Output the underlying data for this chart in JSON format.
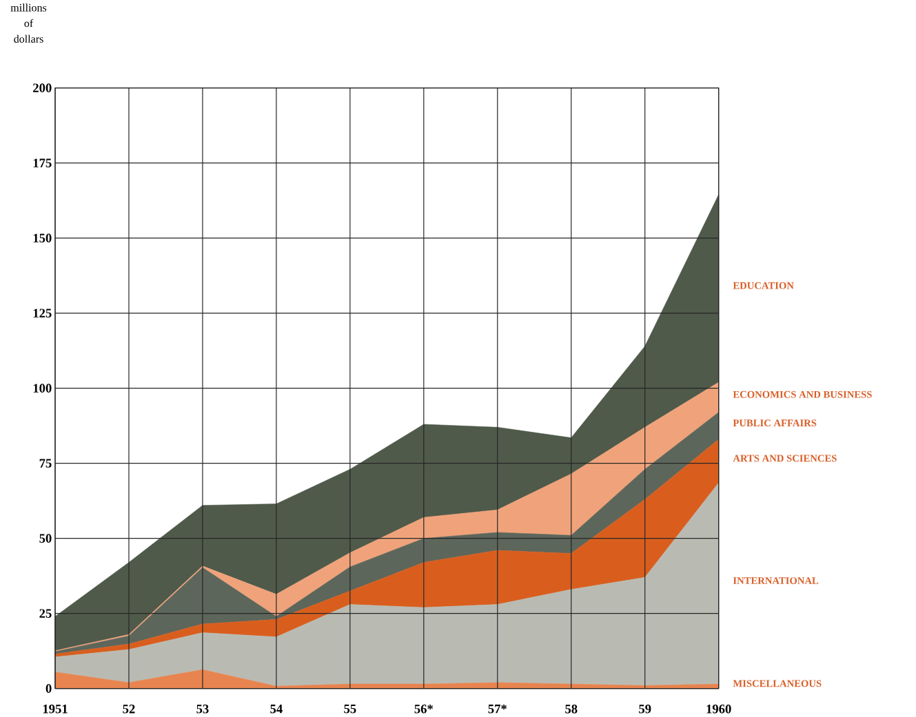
{
  "chart_data": {
    "type": "area",
    "stacked": true,
    "ylabel": "millions of dollars",
    "categories": [
      "1951",
      "52",
      "53",
      "54",
      "55",
      "56*",
      "57*",
      "58",
      "59",
      "1960"
    ],
    "ylim": [
      0,
      200
    ],
    "yticks": [
      0,
      25,
      50,
      75,
      100,
      125,
      150,
      175,
      200
    ],
    "grid": true,
    "series": [
      {
        "name": "MISCELLANEOUS",
        "color": "#e8844f",
        "values": [
          5.5,
          2,
          6.3,
          0.8,
          1.5,
          1.5,
          2,
          1.5,
          1,
          1.5
        ]
      },
      {
        "name": "INTERNATIONAL",
        "color": "#b9bbb3",
        "values": [
          5,
          11,
          12.3,
          16.4,
          26.5,
          25.5,
          26,
          31.5,
          36,
          67
        ]
      },
      {
        "name": "ARTS AND SCIENCES",
        "color": "#d95e1e",
        "values": [
          1,
          1.8,
          2.9,
          5.8,
          4.5,
          15,
          18,
          12,
          26,
          14.5
        ]
      },
      {
        "name": "PUBLIC AFFAIRS",
        "color": "#5d665b",
        "values": [
          0.8,
          2.7,
          18.8,
          1,
          8,
          8,
          6,
          6,
          10,
          9
        ]
      },
      {
        "name": "ECONOMICS AND BUSINESS",
        "color": "#f0a37a",
        "values": [
          0.3,
          0.5,
          0.5,
          7.4,
          4.7,
          7,
          7.5,
          20.5,
          14,
          10
        ]
      },
      {
        "name": "EDUCATION",
        "color": "#4f5a4a",
        "values": [
          11.4,
          24,
          20.2,
          30.1,
          27.8,
          31,
          27.5,
          12,
          27,
          62.5
        ]
      }
    ]
  }
}
